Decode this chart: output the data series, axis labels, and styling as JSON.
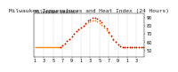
{
  "title": "Milwaukee Temperatures and Heat Index (24 Hours)",
  "subtitle": "Milwaukee Weather",
  "background_color": "#ffffff",
  "plot_bg_color": "#ffffff",
  "ylim": [
    42,
    95
  ],
  "yticks": [
    50,
    60,
    70,
    80,
    90
  ],
  "yticklabels": [
    "50",
    "60",
    "70",
    "80",
    "90"
  ],
  "x_hours": [
    0,
    1,
    2,
    3,
    4,
    5,
    6,
    7,
    8,
    9,
    10,
    11,
    12,
    13,
    14,
    15,
    16,
    17,
    18,
    19,
    20,
    21,
    22,
    23,
    24,
    25,
    26,
    27,
    28,
    29,
    30,
    31,
    32,
    33,
    34,
    35,
    36,
    37,
    38,
    39,
    40,
    41,
    42,
    43,
    44,
    45,
    46,
    47
  ],
  "temp": [
    54,
    54,
    54,
    54,
    54,
    54,
    54,
    54,
    54,
    54,
    54,
    54,
    56,
    58,
    61,
    64,
    67,
    70,
    73,
    76,
    78,
    80,
    82,
    84,
    85,
    86,
    86,
    85,
    83,
    81,
    78,
    75,
    71,
    67,
    63,
    60,
    57,
    55,
    54,
    54,
    54,
    54,
    54,
    54,
    54,
    54,
    54,
    54
  ],
  "heat_index": [
    54,
    54,
    54,
    54,
    54,
    54,
    54,
    54,
    54,
    54,
    54,
    54,
    56,
    58,
    61,
    64,
    67,
    70,
    73,
    76,
    78,
    80,
    83,
    86,
    88,
    90,
    90,
    89,
    87,
    84,
    80,
    77,
    72,
    68,
    64,
    60,
    57,
    55,
    54,
    54,
    54,
    54,
    54,
    54,
    54,
    54,
    54,
    54
  ],
  "temp_color": "#FF8800",
  "heat_color": "#CC0000",
  "grid_color": "#aaaaaa",
  "tick_fontsize": 3.5,
  "title_fontsize": 4.5,
  "subtitle_fontsize": 3.5,
  "marker_size": 1.5,
  "flat_end": 11,
  "xtick_positions": [
    0,
    4,
    8,
    12,
    16,
    20,
    24,
    28,
    32,
    36,
    40,
    44
  ],
  "xtick_labels": [
    "1",
    "3",
    "5",
    "7",
    "9",
    "1",
    "3",
    "5",
    "7",
    "9",
    "1",
    "3"
  ],
  "vgrid_positions": [
    0,
    4,
    8,
    12,
    16,
    20,
    24,
    28,
    32,
    36,
    40,
    44,
    47
  ]
}
